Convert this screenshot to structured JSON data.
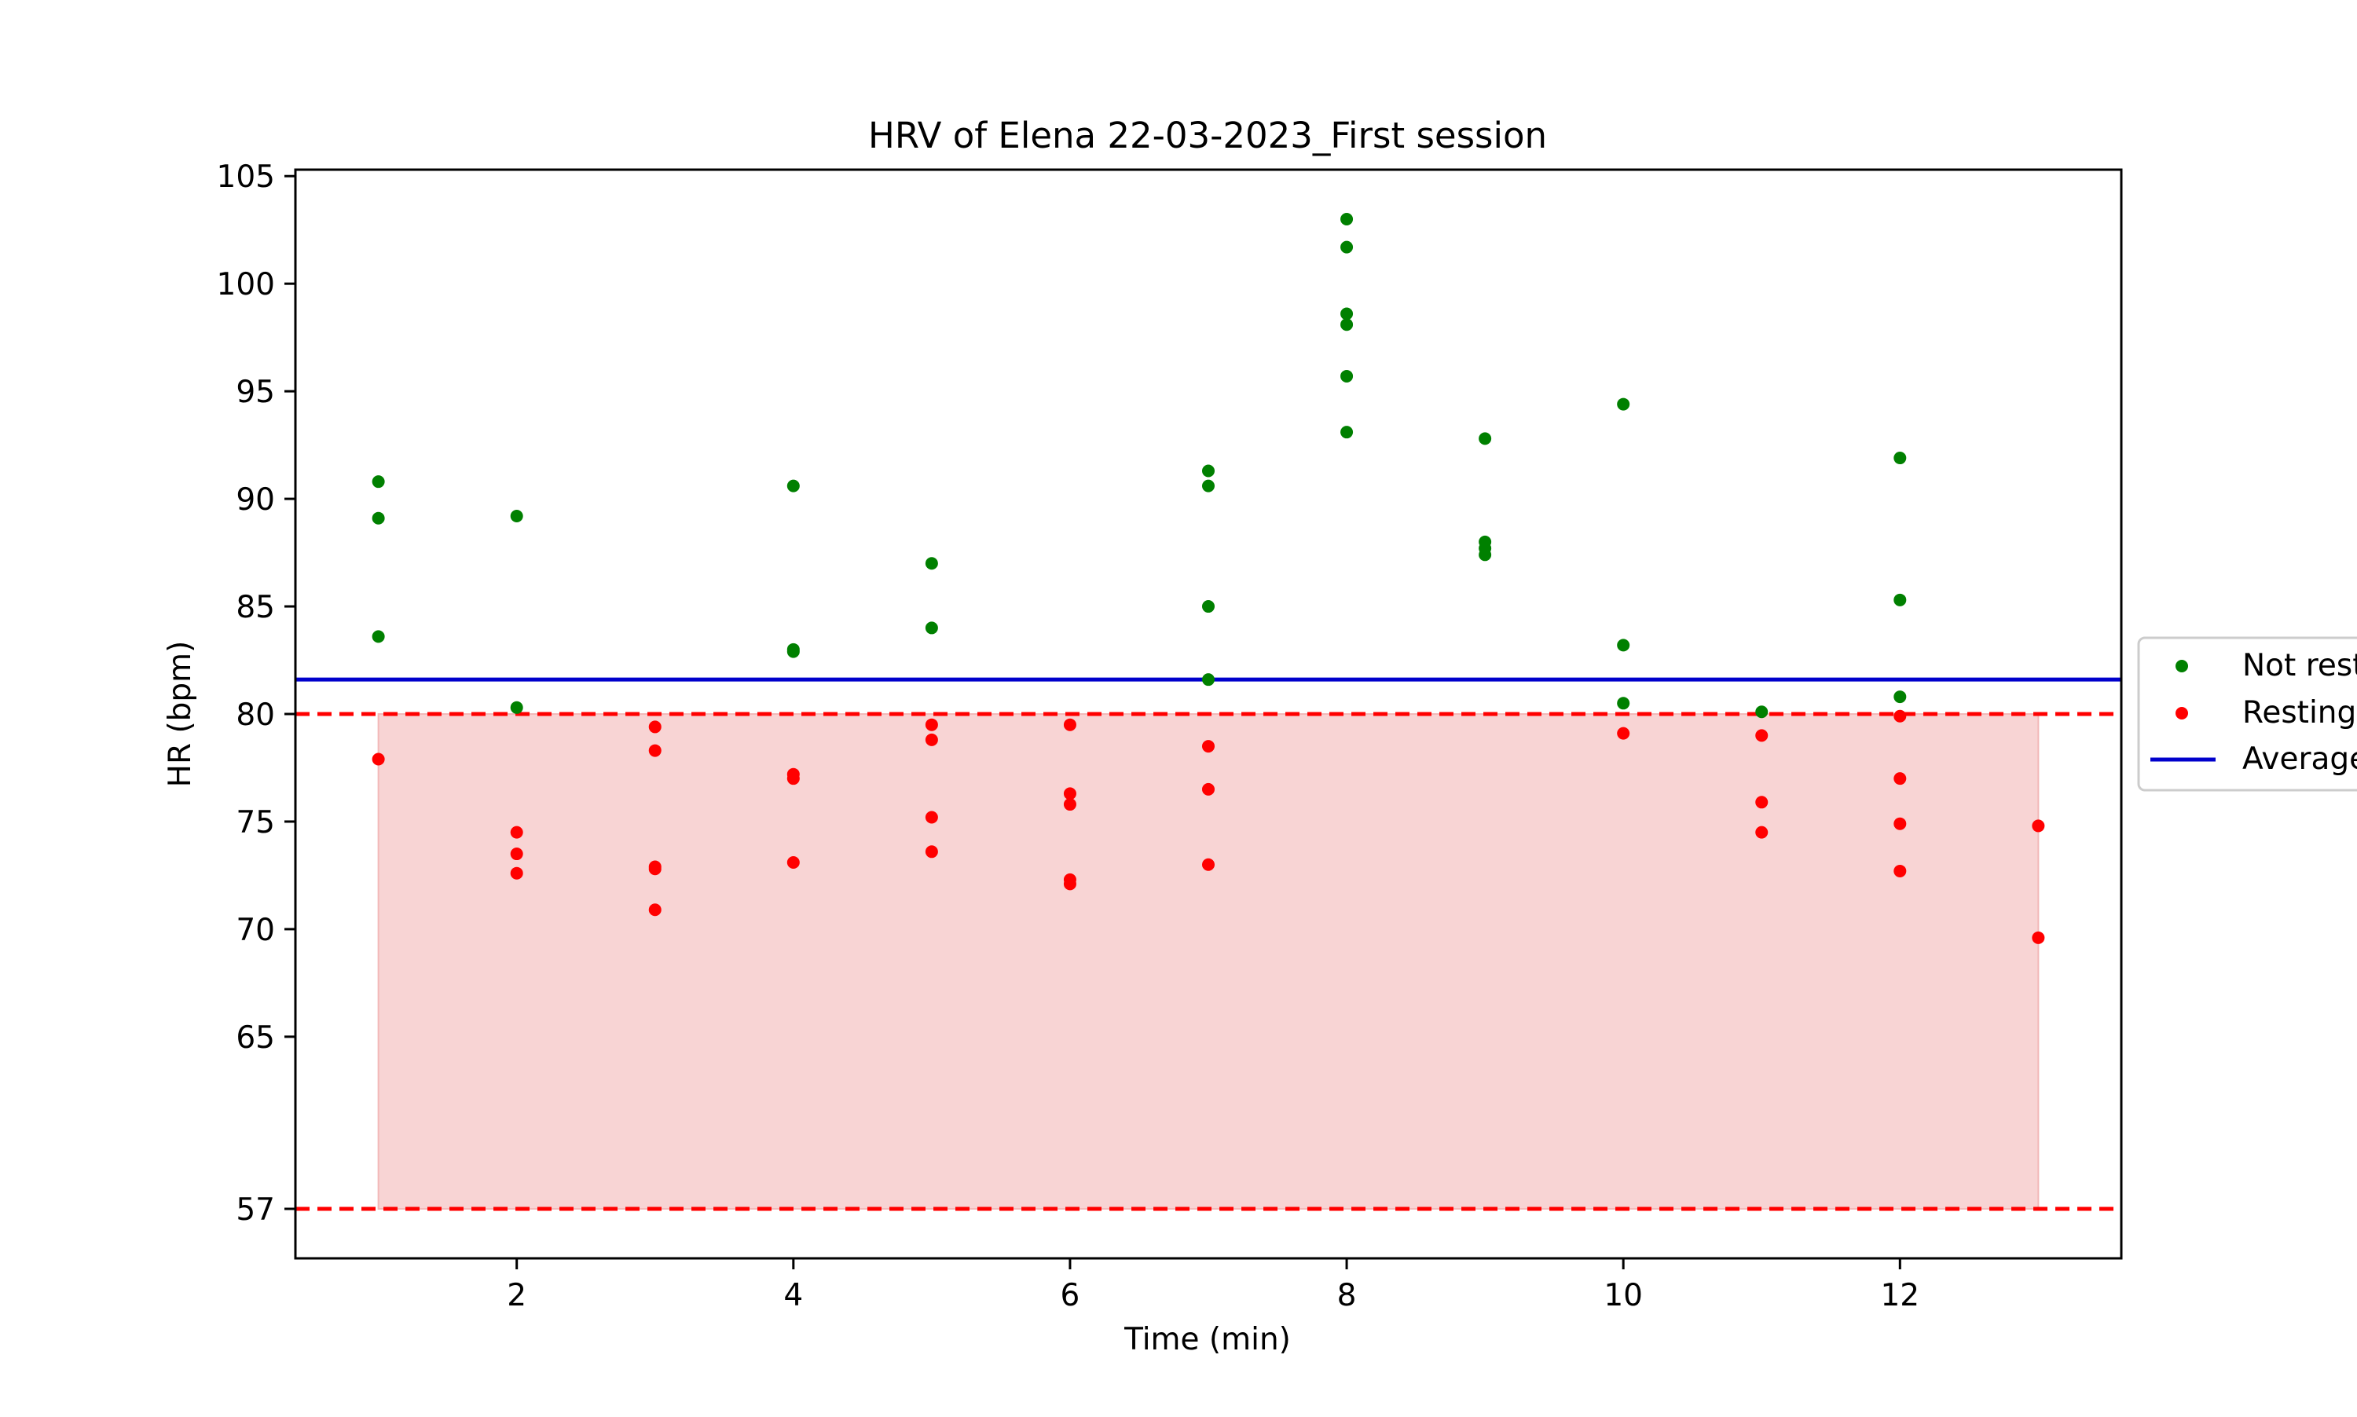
{
  "chart_data": {
    "type": "scatter",
    "title": "HRV of Elena 22-03-2023_First session",
    "xlabel": "Time (min)",
    "ylabel": "HR (bpm)",
    "xlim": [
      0.4,
      13.6
    ],
    "ylim": [
      54.7,
      105.3
    ],
    "xticks": [
      2,
      4,
      6,
      8,
      10,
      12
    ],
    "yticks": [
      57,
      65,
      70,
      75,
      80,
      85,
      90,
      95,
      100,
      105
    ],
    "grid": false,
    "legend_position": "right",
    "series": [
      {
        "name": "Not resting",
        "color": "#008000",
        "points": [
          [
            1,
            90.8
          ],
          [
            1,
            89.1
          ],
          [
            1,
            83.6
          ],
          [
            2,
            89.2
          ],
          [
            2,
            80.3
          ],
          [
            4,
            90.6
          ],
          [
            4,
            83.0
          ],
          [
            4,
            82.9
          ],
          [
            5,
            87.0
          ],
          [
            5,
            84.0
          ],
          [
            7,
            91.3
          ],
          [
            7,
            90.6
          ],
          [
            7,
            85.0
          ],
          [
            7,
            81.6
          ],
          [
            8,
            103.0
          ],
          [
            8,
            101.7
          ],
          [
            8,
            98.6
          ],
          [
            8,
            98.1
          ],
          [
            8,
            95.7
          ],
          [
            8,
            93.1
          ],
          [
            9,
            92.8
          ],
          [
            9,
            88.0
          ],
          [
            9,
            87.7
          ],
          [
            9,
            87.4
          ],
          [
            10,
            94.4
          ],
          [
            10,
            83.2
          ],
          [
            10,
            80.5
          ],
          [
            11,
            80.1
          ],
          [
            12,
            91.9
          ],
          [
            12,
            85.3
          ],
          [
            12,
            80.8
          ]
        ]
      },
      {
        "name": "Resting",
        "color": "#ff0000",
        "points": [
          [
            1,
            77.9
          ],
          [
            2,
            74.5
          ],
          [
            2,
            73.5
          ],
          [
            2,
            72.6
          ],
          [
            3,
            79.4
          ],
          [
            3,
            78.3
          ],
          [
            3,
            72.9
          ],
          [
            3,
            72.8
          ],
          [
            3,
            70.9
          ],
          [
            4,
            77.2
          ],
          [
            4,
            77.0
          ],
          [
            4,
            73.1
          ],
          [
            5,
            79.5
          ],
          [
            5,
            78.8
          ],
          [
            5,
            75.2
          ],
          [
            5,
            73.6
          ],
          [
            6,
            79.5
          ],
          [
            6,
            76.3
          ],
          [
            6,
            75.8
          ],
          [
            6,
            72.3
          ],
          [
            6,
            72.1
          ],
          [
            7,
            78.5
          ],
          [
            7,
            76.5
          ],
          [
            7,
            73.0
          ],
          [
            10,
            79.1
          ],
          [
            11,
            79.0
          ],
          [
            11,
            75.9
          ],
          [
            11,
            74.5
          ],
          [
            12,
            79.9
          ],
          [
            12,
            77.0
          ],
          [
            12,
            74.9
          ],
          [
            12,
            72.7
          ],
          [
            13,
            74.8
          ],
          [
            13,
            69.6
          ]
        ]
      },
      {
        "name": "Average",
        "type": "hline",
        "color": "#0000cc",
        "value": 81.6
      }
    ],
    "resting_band": {
      "x_from": 1,
      "x_to": 13,
      "y_low": 57,
      "y_high": 80,
      "fill": "#f8d4d4",
      "line_color": "#ff0000",
      "line_style": "dashed"
    },
    "legend_entries": [
      "Not resting",
      "Resting",
      "Average"
    ]
  }
}
